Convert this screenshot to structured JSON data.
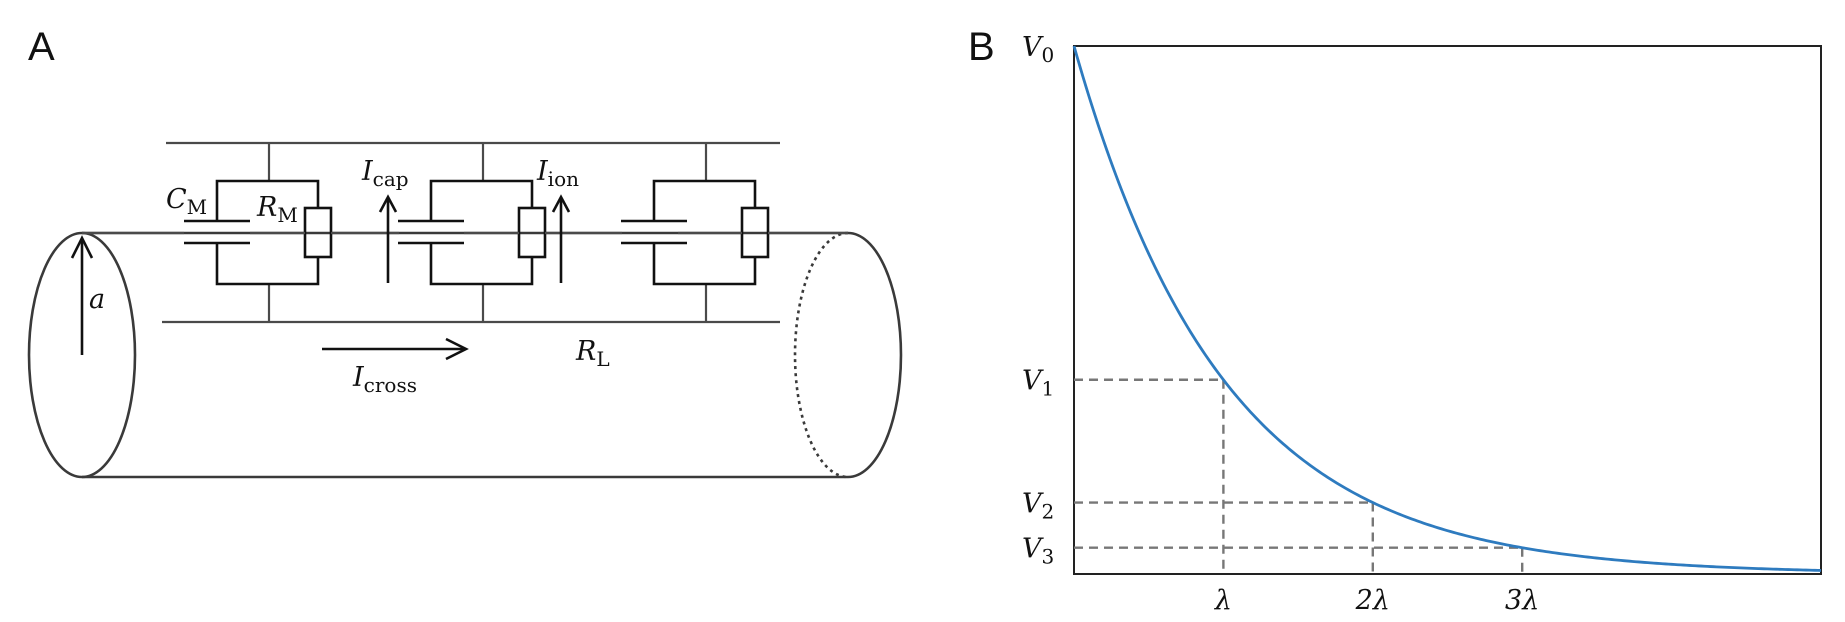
{
  "panels": {
    "a": {
      "label": "A"
    },
    "b": {
      "label": "B"
    }
  },
  "circuit": {
    "cm": {
      "main": "C",
      "sub": "M"
    },
    "rm": {
      "main": "R",
      "sub": "M"
    },
    "icap": {
      "main": "I",
      "sub": "cap"
    },
    "iion": {
      "main": "I",
      "sub": "ion"
    },
    "icross": {
      "main": "I",
      "sub": "cross"
    },
    "rl": {
      "main": "R",
      "sub": "L"
    },
    "radius": {
      "main": "a"
    }
  },
  "chart_data": {
    "type": "line",
    "title": "",
    "xlabel": "",
    "ylabel": "",
    "function": "V(x) = V0 * exp(-x / λ)",
    "x_units": "λ",
    "xlim": [
      0,
      5
    ],
    "ylim": [
      0,
      1
    ],
    "series": [
      {
        "x": [
          0,
          0.25,
          0.5,
          0.75,
          1,
          1.25,
          1.5,
          1.75,
          2,
          2.25,
          2.5,
          2.75,
          3,
          3.25,
          3.5,
          3.75,
          4,
          4.25,
          4.5,
          4.75,
          5
        ],
        "y": [
          1,
          0.7788,
          0.6065,
          0.4724,
          0.3679,
          0.2865,
          0.2231,
          0.1738,
          0.1353,
          0.1054,
          0.0821,
          0.0639,
          0.0498,
          0.0388,
          0.0302,
          0.0235,
          0.0183,
          0.0143,
          0.0111,
          0.0087,
          0.0067
        ],
        "color": "#2e7bbf"
      }
    ],
    "xticks": [
      {
        "value": 1,
        "label": "λ"
      },
      {
        "value": 2,
        "label": "2λ"
      },
      {
        "value": 3,
        "label": "3λ"
      }
    ],
    "yticks": [
      {
        "value": 1,
        "main": "V",
        "sub": "0"
      },
      {
        "value": 0.3679,
        "main": "V",
        "sub": "1"
      },
      {
        "value": 0.1353,
        "main": "V",
        "sub": "2"
      },
      {
        "value": 0.0498,
        "main": "V",
        "sub": "3"
      }
    ],
    "guides": [
      {
        "x": 1,
        "y": 0.3679
      },
      {
        "x": 2,
        "y": 0.1353
      },
      {
        "x": 3,
        "y": 0.0498
      }
    ],
    "grid": false,
    "legend": "none"
  }
}
